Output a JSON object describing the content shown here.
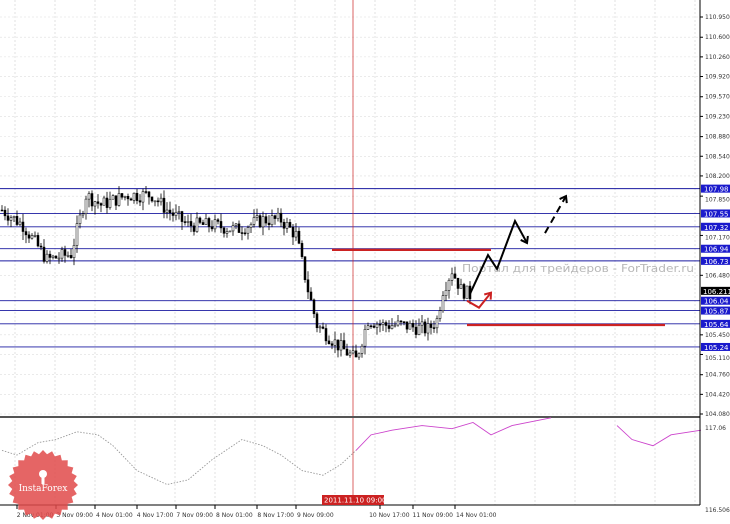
{
  "chart_data": {
    "type": "candlestick",
    "price_axis": {
      "range": [
        104.08,
        110.95
      ],
      "tick_labels": [
        "110.950",
        "110.600",
        "110.260",
        "109.920",
        "109.570",
        "109.230",
        "108.880",
        "108.540",
        "108.200",
        "107.850",
        "107.170",
        "106.480",
        "105.450",
        "105.110",
        "104.760",
        "104.420",
        "104.080"
      ]
    },
    "current_price": "106.211",
    "level_lines": [
      {
        "label": "107.98",
        "value": 107.98
      },
      {
        "label": "107.55",
        "value": 107.55
      },
      {
        "label": "107.32",
        "value": 107.32
      },
      {
        "label": "106.94",
        "value": 106.94
      },
      {
        "label": "106.73",
        "value": 106.73
      },
      {
        "label": "106.04",
        "value": 106.04
      },
      {
        "label": "105.87",
        "value": 105.87
      },
      {
        "label": "105.64",
        "value": 105.64
      },
      {
        "label": "105.24",
        "value": 105.24
      }
    ],
    "red_levels": [
      {
        "value": 106.92,
        "from_bar": 110,
        "to_bar": 163
      },
      {
        "value": 105.62,
        "from_bar": 155,
        "to_bar": 221
      }
    ],
    "price_keypoints": [
      [
        0,
        107.61
      ],
      [
        7,
        107.35
      ],
      [
        15,
        106.75
      ],
      [
        23,
        106.85
      ],
      [
        28,
        107.87
      ],
      [
        33,
        107.7
      ],
      [
        42,
        107.87
      ],
      [
        50,
        107.87
      ],
      [
        55,
        107.61
      ],
      [
        62,
        107.35
      ],
      [
        70,
        107.35
      ],
      [
        78,
        107.27
      ],
      [
        87,
        107.44
      ],
      [
        93,
        107.44
      ],
      [
        98,
        107.18
      ],
      [
        102,
        106.23
      ],
      [
        105,
        105.62
      ],
      [
        112,
        105.27
      ],
      [
        118,
        105.02
      ],
      [
        122,
        105.71
      ],
      [
        127,
        105.62
      ],
      [
        133,
        105.62
      ],
      [
        142,
        105.54
      ],
      [
        145,
        105.71
      ],
      [
        147,
        106.23
      ],
      [
        150,
        106.57
      ],
      [
        153,
        106.23
      ],
      [
        156,
        106.14
      ]
    ],
    "forecast_path": [
      [
        156,
        106.16
      ],
      [
        162,
        106.83
      ],
      [
        165,
        106.59
      ],
      [
        171,
        107.42
      ],
      [
        175,
        107.04
      ]
    ],
    "forecast_dashed": [
      [
        181,
        107.21
      ],
      [
        188,
        107.85
      ]
    ],
    "alt_path": [
      [
        155,
        106.04
      ],
      [
        159,
        105.92
      ],
      [
        163,
        106.18
      ]
    ],
    "indicator": {
      "range": [
        116.506,
        117.06
      ],
      "tick_labels": [
        "117.06",
        "116.506"
      ],
      "dotted": [
        [
          0,
          116.89
        ],
        [
          5,
          116.86
        ],
        [
          12,
          116.94
        ],
        [
          18,
          116.96
        ],
        [
          25,
          117.01
        ],
        [
          32,
          116.99
        ],
        [
          37,
          116.92
        ],
        [
          45,
          116.76
        ],
        [
          55,
          116.67
        ],
        [
          62,
          116.7
        ],
        [
          70,
          116.83
        ],
        [
          80,
          116.96
        ],
        [
          87,
          116.92
        ],
        [
          93,
          116.86
        ],
        [
          100,
          116.76
        ],
        [
          107,
          116.73
        ],
        [
          113,
          116.8
        ],
        [
          118,
          116.89
        ]
      ],
      "solid": [
        [
          118,
          116.89
        ],
        [
          123,
          116.99
        ],
        [
          130,
          117.02
        ],
        [
          140,
          117.05
        ],
        [
          150,
          117.03
        ],
        [
          157,
          117.07
        ],
        [
          163,
          116.99
        ],
        [
          170,
          117.05
        ],
        [
          183,
          117.1
        ]
      ],
      "solid2": [
        [
          205,
          117.05
        ],
        [
          210,
          116.96
        ],
        [
          217,
          116.92
        ],
        [
          223,
          116.99
        ],
        [
          233,
          117.02
        ]
      ],
      "dotted_color": "#999999",
      "solid_color": "#cc44cc"
    },
    "time_labels": [
      {
        "bar": 5,
        "label": "2 Nov 01:00"
      },
      {
        "bar": 18,
        "label": "3 Nov 09:00"
      },
      {
        "bar": 31,
        "label": "4 Nov 01:00"
      },
      {
        "bar": 45,
        "label": "4 Nov 17:00"
      },
      {
        "bar": 58,
        "label": "7 Nov 09:00"
      },
      {
        "bar": 71,
        "label": "8 Nov 01:00"
      },
      {
        "bar": 85,
        "label": "8 Nov 17:00"
      },
      {
        "bar": 98,
        "label": "9 Nov 09:00"
      },
      {
        "bar": 126,
        "label": "10 Nov 17:00"
      },
      {
        "bar": 137,
        "label": "11 Nov 09:00"
      },
      {
        "bar": 151,
        "label": "14 Nov 01:00"
      }
    ],
    "cursor": {
      "bar": 117,
      "label": "2011.11.10 09:00"
    },
    "colors": {
      "level": "#1a1aa0",
      "red": "#cc2222",
      "cursor": "#cc2222",
      "tag": "#1a1acc"
    }
  },
  "watermark": "Портал для трейдеров - ForTrader.ru",
  "logo": {
    "text": "InstaForex",
    "color": "#e04a4a"
  }
}
